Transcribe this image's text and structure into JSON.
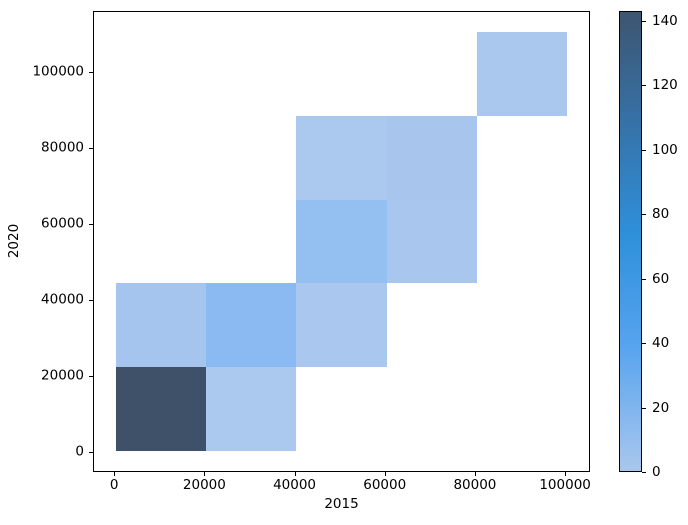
{
  "chart_data": {
    "type": "heatmap",
    "subtype": "2d-histogram",
    "title": "",
    "xlabel": "2015",
    "ylabel": "2020",
    "grid": false,
    "background": "#ffffff",
    "xlim": [
      -4700,
      105520
    ],
    "ylim": [
      -5260,
      115910
    ],
    "x_tick_values": [
      0,
      20000,
      40000,
      60000,
      80000,
      100000
    ],
    "x_tick_labels": [
      "0",
      "20000",
      "40000",
      "60000",
      "80000",
      "100000"
    ],
    "y_tick_values": [
      0,
      20000,
      40000,
      60000,
      80000,
      100000
    ],
    "y_tick_labels": [
      "0",
      "20000",
      "40000",
      "60000",
      "80000",
      "100000"
    ],
    "x_bin_edges": [
      310,
      20350,
      40390,
      60430,
      80470,
      100510
    ],
    "y_bin_edges": [
      250,
      22280,
      44310,
      66340,
      88370,
      110400
    ],
    "empty_cell_color": "#ffffff",
    "cells": [
      {
        "col": 0,
        "row": 0,
        "count": 143,
        "color": "#3e5169"
      },
      {
        "col": 1,
        "row": 0,
        "count": 4,
        "color": "#abc8ef"
      },
      {
        "col": 0,
        "row": 1,
        "count": 6,
        "color": "#a6c5ee"
      },
      {
        "col": 1,
        "row": 1,
        "count": 18,
        "color": "#8abaf1"
      },
      {
        "col": 2,
        "row": 1,
        "count": 5,
        "color": "#a9c7ef"
      },
      {
        "col": 2,
        "row": 2,
        "count": 15,
        "color": "#93bff1"
      },
      {
        "col": 3,
        "row": 2,
        "count": 5,
        "color": "#a9c7ee"
      },
      {
        "col": 2,
        "row": 3,
        "count": 4,
        "color": "#abc8ee"
      },
      {
        "col": 3,
        "row": 3,
        "count": 6,
        "color": "#a8c6ed"
      },
      {
        "col": 4,
        "row": 4,
        "count": 5,
        "color": "#aac7ed"
      }
    ],
    "colorbar": {
      "side": "right",
      "vmin": 0,
      "vmax": 143,
      "tick_values": [
        0,
        20,
        40,
        60,
        80,
        100,
        120,
        140
      ],
      "tick_labels": [
        "0",
        "20",
        "40",
        "60",
        "80",
        "100",
        "120",
        "140"
      ],
      "gradient_stops": [
        {
          "value": 0,
          "color": "#aac7ed"
        },
        {
          "value": 40,
          "color": "#55a3ef"
        },
        {
          "value": 74,
          "color": "#2e90da"
        },
        {
          "value": 108,
          "color": "#3672a8"
        },
        {
          "value": 143,
          "color": "#3d5570"
        }
      ]
    }
  }
}
